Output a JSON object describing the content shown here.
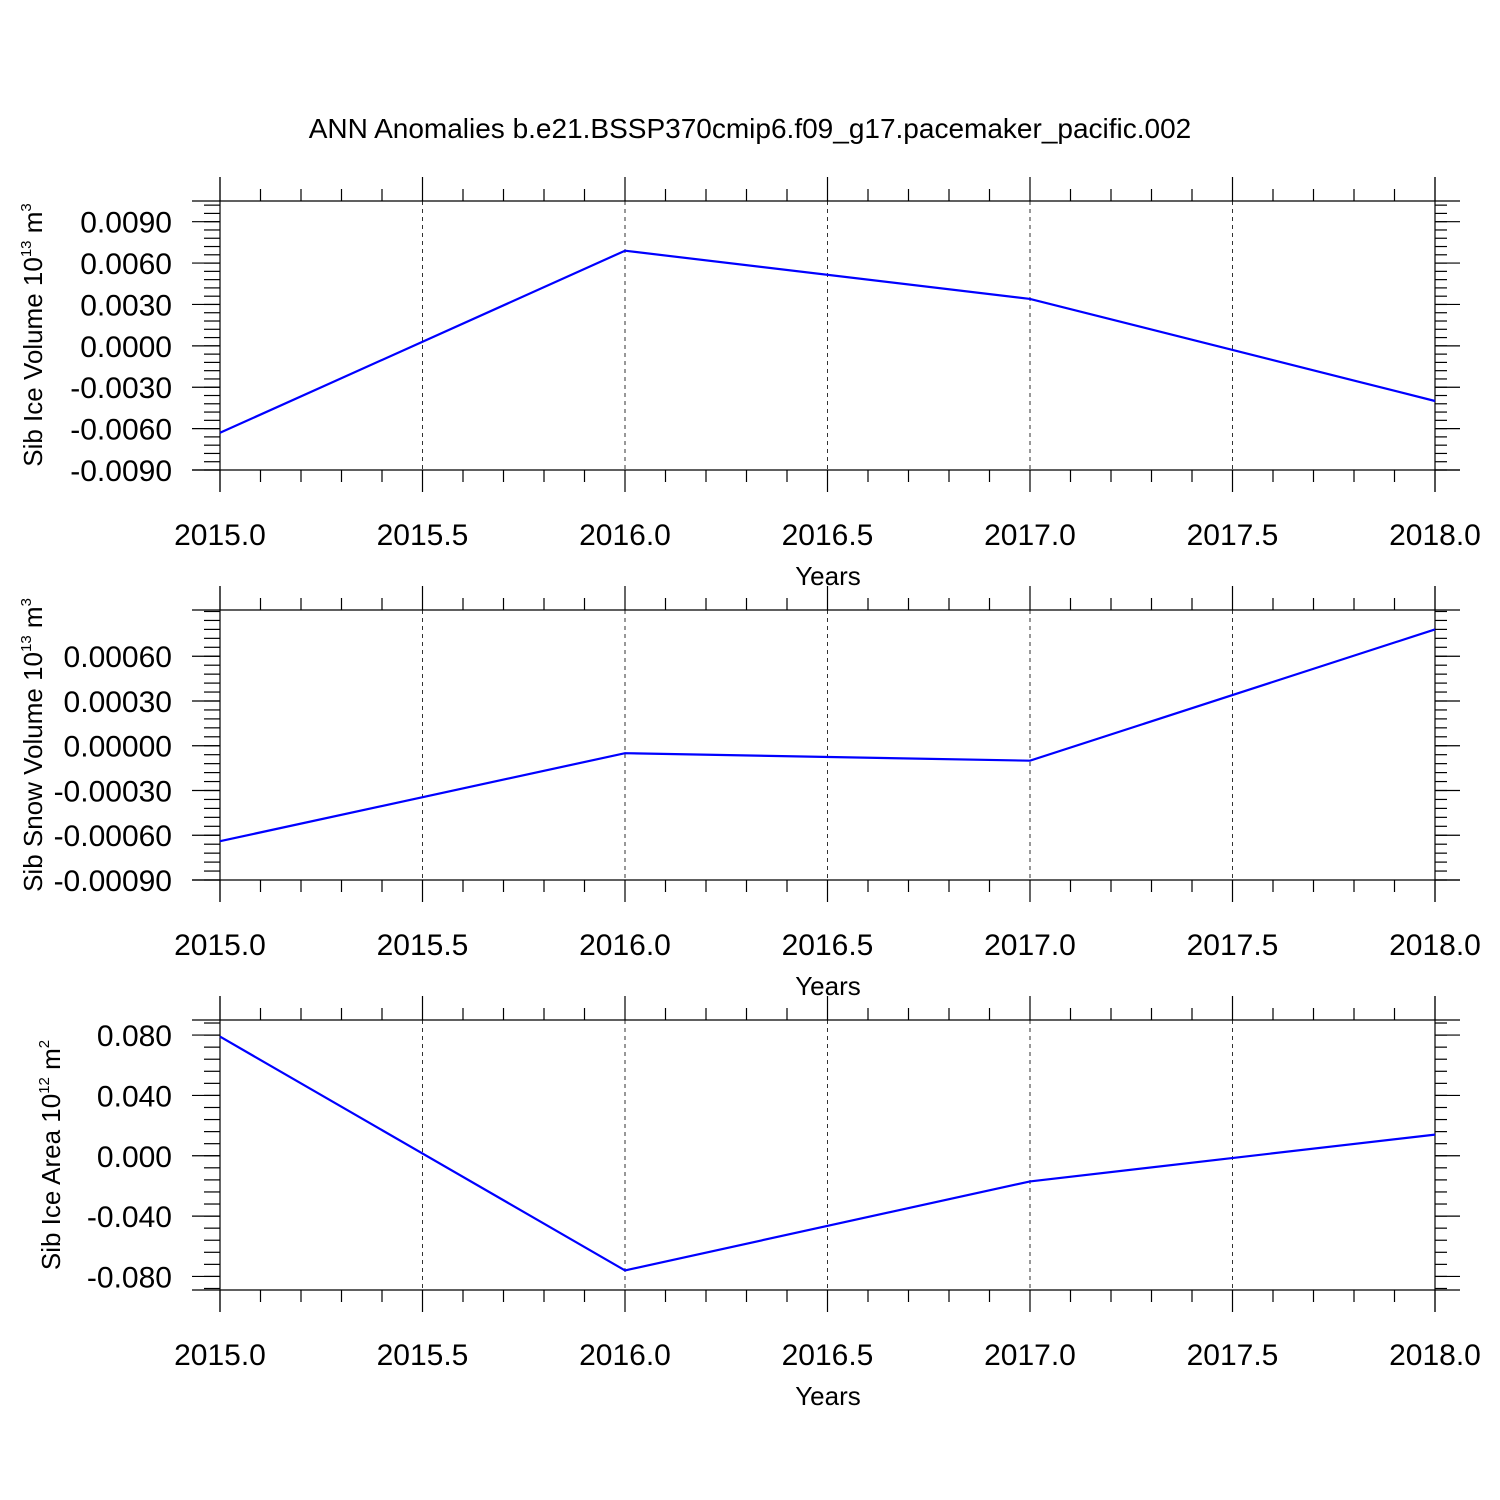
{
  "title": "ANN Anomalies b.e21.BSSP370cmip6.f09_g17.pacemaker_pacific.002",
  "colors": {
    "line": "#0000ff",
    "axis": "#000000"
  },
  "chart_data": [
    {
      "type": "line",
      "ylabel": {
        "text": "Sib Ice Volume 10",
        "sup1": "13",
        "unit": " m",
        "sup2": "3"
      },
      "xlabel": "Years",
      "xlim": [
        2015.0,
        2018.0
      ],
      "ylim": [
        -0.009,
        0.0105
      ],
      "xticks": [
        "2015.0",
        "2015.5",
        "2016.0",
        "2016.5",
        "2017.0",
        "2017.5",
        "2018.0"
      ],
      "yticks": [
        "0.0090",
        "0.0060",
        "0.0030",
        "0.0000",
        "-0.0030",
        "-0.0060",
        "-0.0090"
      ],
      "grid": "x-dashed",
      "x": [
        2015,
        2016,
        2017,
        2018
      ],
      "values": [
        -0.0063,
        0.0069,
        0.0034,
        -0.004
      ]
    },
    {
      "type": "line",
      "ylabel": {
        "text": "Sib Snow Volume 10",
        "sup1": "13",
        "unit": " m",
        "sup2": "3"
      },
      "xlabel": "Years",
      "xlim": [
        2015.0,
        2018.0
      ],
      "ylim": [
        -0.0009,
        0.00091
      ],
      "xticks": [
        "2015.0",
        "2015.5",
        "2016.0",
        "2016.5",
        "2017.0",
        "2017.5",
        "2018.0"
      ],
      "yticks": [
        "0.00060",
        "0.00030",
        "0.00000",
        "-0.00030",
        "-0.00060",
        "-0.00090"
      ],
      "grid": "x-dashed",
      "x": [
        2015,
        2016,
        2017,
        2018
      ],
      "values": [
        -0.00064,
        -5e-05,
        -0.0001,
        0.00078
      ]
    },
    {
      "type": "line",
      "ylabel": {
        "text": "Sib Ice Area 10",
        "sup1": "12",
        "unit": " m",
        "sup2": "2"
      },
      "xlabel": "Years",
      "xlim": [
        2015.0,
        2018.0
      ],
      "ylim": [
        -0.089,
        0.09
      ],
      "xticks": [
        "2015.0",
        "2015.5",
        "2016.0",
        "2016.5",
        "2017.0",
        "2017.5",
        "2018.0"
      ],
      "yticks": [
        "0.080",
        "0.040",
        "0.000",
        "-0.040",
        "-0.080"
      ],
      "grid": "x-dashed",
      "x": [
        2015,
        2016,
        2017,
        2018
      ],
      "values": [
        0.079,
        -0.076,
        -0.017,
        0.014
      ]
    }
  ]
}
